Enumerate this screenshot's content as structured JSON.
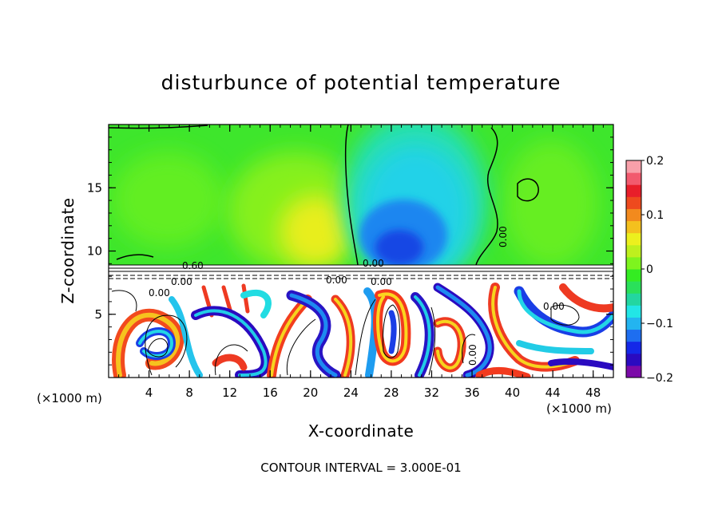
{
  "chart_data": {
    "type": "heatmap",
    "title": "disturbunce of potential temperature",
    "xlabel": "X-coordinate",
    "ylabel": "Z-coordinate",
    "x_unit": "(×1000 m)",
    "y_unit": "(×1000 m)",
    "xlim": [
      0,
      50
    ],
    "ylim": [
      0,
      20
    ],
    "x_ticks": [
      4,
      8,
      12,
      16,
      20,
      24,
      28,
      32,
      36,
      40,
      44,
      48
    ],
    "y_ticks": [
      5,
      10,
      15
    ],
    "colorbar": {
      "min": -0.2,
      "max": 0.2,
      "tick_labels": [
        "0.2",
        "0.1",
        "0",
        "−0.1",
        "−0.2"
      ],
      "colors": [
        "#7b0aa8",
        "#2a0ac0",
        "#1428e8",
        "#1e6ef0",
        "#23b4f0",
        "#22e6e6",
        "#23d6a0",
        "#2ae05a",
        "#34ec22",
        "#7ef41e",
        "#bef01e",
        "#ecf01e",
        "#f4c01e",
        "#f28a1e",
        "#ee4a1e",
        "#e81e2a",
        "#f25a6e",
        "#f8a0aa"
      ]
    },
    "contour_labels": [
      "0.60",
      "0.00",
      "0.00",
      "0.00",
      "0.00",
      "0.00",
      "0.00",
      "0.00",
      "0.00"
    ],
    "footnote": "CONTOUR INTERVAL = 3.000E-01"
  }
}
